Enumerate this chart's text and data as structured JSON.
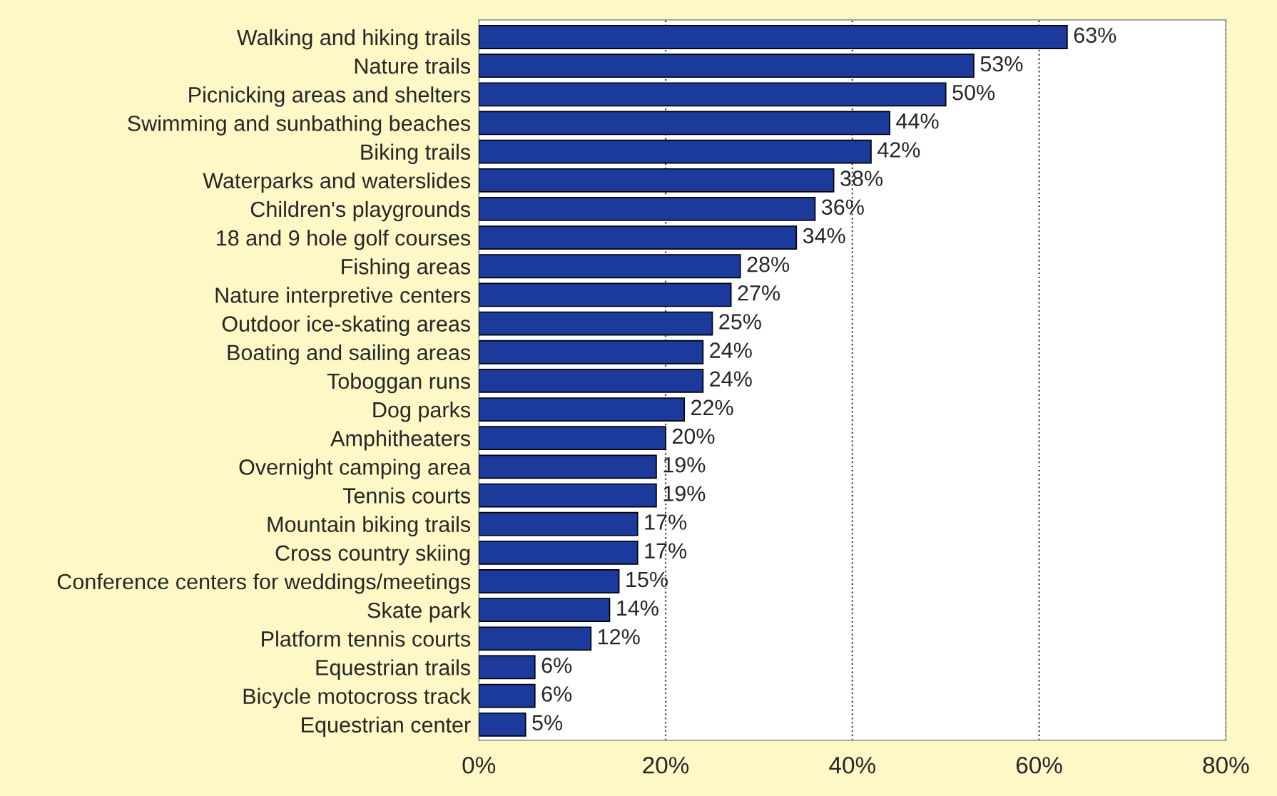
{
  "chart_data": {
    "type": "bar",
    "orientation": "horizontal",
    "categories": [
      "Walking and hiking trails",
      "Nature trails",
      "Picnicking areas and shelters",
      "Swimming and sunbathing beaches",
      "Biking trails",
      "Waterparks and waterslides",
      "Children's playgrounds",
      "18 and 9 hole golf courses",
      "Fishing areas",
      "Nature interpretive centers",
      "Outdoor ice-skating areas",
      "Boating and sailing areas",
      "Toboggan runs",
      "Dog parks",
      "Amphitheaters",
      "Overnight camping area",
      "Tennis courts",
      "Mountain biking trails",
      "Cross country skiing",
      "Conference centers for weddings/meetings",
      "Skate park",
      "Platform tennis courts",
      "Equestrian trails",
      "Bicycle motocross track",
      "Equestrian center"
    ],
    "values": [
      63,
      53,
      50,
      44,
      42,
      38,
      36,
      34,
      28,
      27,
      25,
      24,
      24,
      22,
      20,
      19,
      19,
      17,
      17,
      15,
      14,
      12,
      6,
      6,
      5
    ],
    "value_labels": [
      "63%",
      "53%",
      "50%",
      "44%",
      "42%",
      "38%",
      "36%",
      "34%",
      "28%",
      "27%",
      "25%",
      "24%",
      "24%",
      "22%",
      "20%",
      "19%",
      "19%",
      "17%",
      "17%",
      "15%",
      "14%",
      "12%",
      "6%",
      "6%",
      "5%"
    ],
    "color": "#1c3a9c",
    "xlim": [
      0,
      80
    ],
    "xticks": [
      {
        "value": 0,
        "label": "0%"
      },
      {
        "value": 20,
        "label": "20%"
      },
      {
        "value": 40,
        "label": "40%"
      },
      {
        "value": 60,
        "label": "60%"
      },
      {
        "value": 80,
        "label": "80%"
      }
    ],
    "grid": "x",
    "line_style": "dotted",
    "legend": false
  }
}
